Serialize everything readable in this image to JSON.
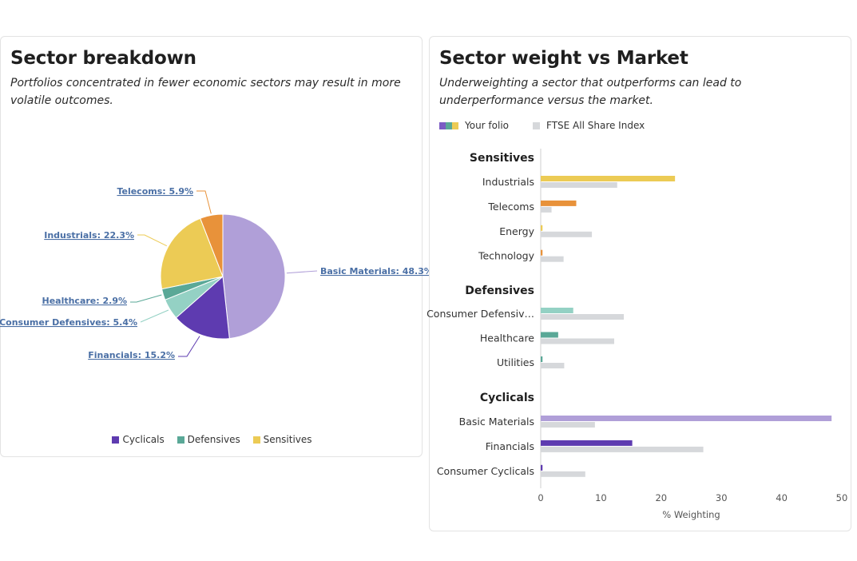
{
  "left_card": {
    "title": "Sector breakdown",
    "subtitle": "Portfolios concentrated in fewer economic sectors may result in more volatile outcomes.",
    "legend": [
      {
        "label": "Cyclicals",
        "color": "#5e3bb0"
      },
      {
        "label": "Defensives",
        "color": "#5aa897"
      },
      {
        "label": "Sensitives",
        "color": "#eccb55"
      }
    ]
  },
  "right_card": {
    "title": "Sector weight vs Market",
    "subtitle": "Underweighting a sector that outperforms can lead to underperformance versus the market.",
    "legend": {
      "folio_label": "Your folio",
      "folio_colors": [
        "#7c5cc4",
        "#5aa897",
        "#eccb55"
      ],
      "index_label": "FTSE All Share Index",
      "index_color": "#d6d8db"
    }
  },
  "chart_data": [
    {
      "type": "pie",
      "title": "Sector breakdown",
      "slices": [
        {
          "label": "Basic Materials: 48.3%",
          "name": "Basic Materials",
          "value": 48.3,
          "color": "#b09fd8",
          "group": "Cyclicals"
        },
        {
          "label": "Financials: 15.2%",
          "name": "Financials",
          "value": 15.2,
          "color": "#5e3bb0",
          "group": "Cyclicals"
        },
        {
          "label": "Consumer Defensives: 5.4%",
          "name": "Consumer Defensives",
          "value": 5.4,
          "color": "#94d1c4",
          "group": "Defensives"
        },
        {
          "label": "Healthcare: 2.9%",
          "name": "Healthcare",
          "value": 2.9,
          "color": "#5aa897",
          "group": "Defensives"
        },
        {
          "label": "Industrials: 22.3%",
          "name": "Industrials",
          "value": 22.3,
          "color": "#eccb55",
          "group": "Sensitives"
        },
        {
          "label": "Telecoms: 5.9%",
          "name": "Telecoms",
          "value": 5.9,
          "color": "#e8923a",
          "group": "Sensitives"
        }
      ]
    },
    {
      "type": "bar",
      "orientation": "horizontal",
      "title": "Sector weight vs Market",
      "xlabel": "% Weighting",
      "xlim": [
        0,
        50
      ],
      "xticks": [
        "0",
        "10",
        "20",
        "30",
        "40",
        "50"
      ],
      "index_color": "#d6d8db",
      "groups": [
        {
          "name": "Sensitives",
          "items": [
            {
              "label": "Industrials",
              "folio": 22.3,
              "index": 12.7,
              "color": "#eccb55"
            },
            {
              "label": "Telecoms",
              "folio": 5.9,
              "index": 1.8,
              "color": "#e8923a"
            },
            {
              "label": "Energy",
              "folio": 0.3,
              "index": 8.5,
              "color": "#eccb55"
            },
            {
              "label": "Technology",
              "folio": 0.3,
              "index": 3.8,
              "color": "#e8923a"
            }
          ]
        },
        {
          "name": "Defensives",
          "items": [
            {
              "label": "Consumer Defensiv…",
              "folio": 5.4,
              "index": 13.8,
              "color": "#94d1c4"
            },
            {
              "label": "Healthcare",
              "folio": 2.9,
              "index": 12.2,
              "color": "#5aa897"
            },
            {
              "label": "Utilities",
              "folio": 0.3,
              "index": 3.9,
              "color": "#5aa897"
            }
          ]
        },
        {
          "name": "Cyclicals",
          "items": [
            {
              "label": "Basic Materials",
              "folio": 48.3,
              "index": 9.0,
              "color": "#b09fd8"
            },
            {
              "label": "Financials",
              "folio": 15.2,
              "index": 27.0,
              "color": "#5e3bb0"
            },
            {
              "label": "Consumer Cyclicals",
              "folio": 0.3,
              "index": 7.4,
              "color": "#5e3bb0"
            }
          ]
        }
      ]
    }
  ]
}
